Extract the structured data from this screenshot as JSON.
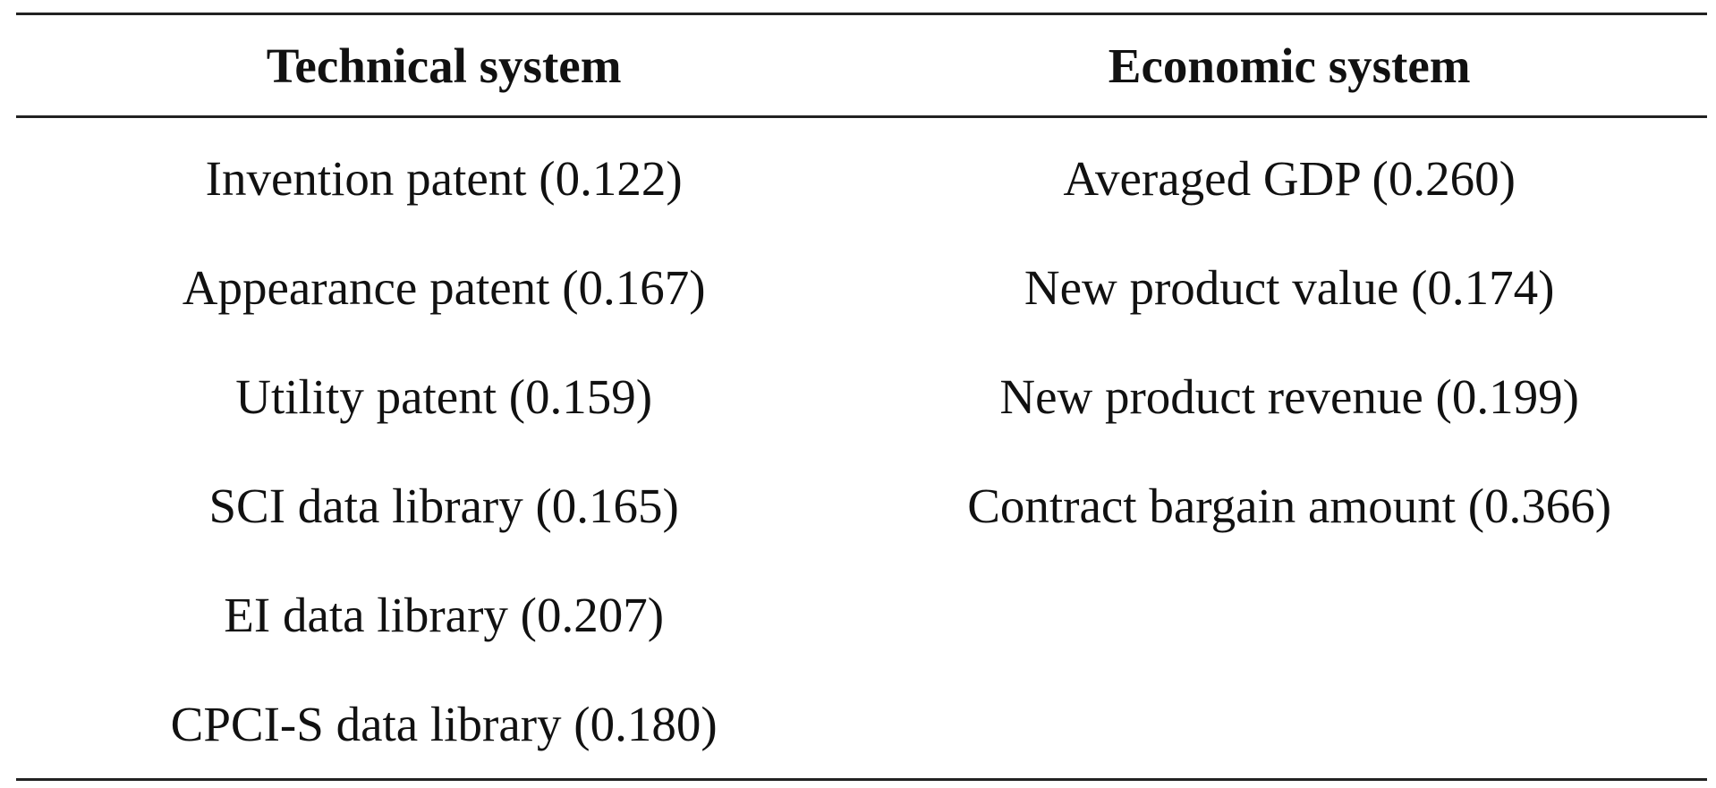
{
  "table": {
    "headers": [
      "Technical system",
      "Economic system"
    ],
    "rows": [
      [
        "Invention patent (0.122)",
        "Averaged GDP (0.260)"
      ],
      [
        "Appearance patent (0.167)",
        "New product value (0.174)"
      ],
      [
        "Utility patent (0.159)",
        "New product revenue (0.199)"
      ],
      [
        "SCI data library (0.165)",
        "Contract bargain amount (0.366)"
      ],
      [
        "EI data library (0.207)",
        ""
      ],
      [
        "CPCI-S data library (0.180)",
        ""
      ]
    ]
  }
}
